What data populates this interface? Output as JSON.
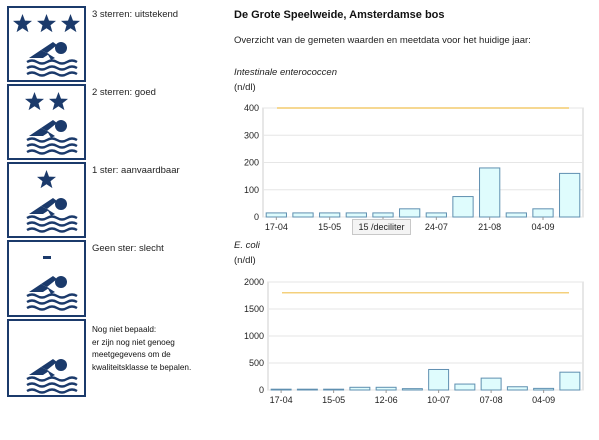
{
  "legend": {
    "items": [
      {
        "label": "3 sterren: uitstekend",
        "stars": 3
      },
      {
        "label": "2 sterren: goed",
        "stars": 2
      },
      {
        "label": "1 ster: aanvaardbaar",
        "stars": 1
      },
      {
        "label": "Geen ster: slecht",
        "stars": 0
      },
      {
        "label": "",
        "stars": -1
      }
    ],
    "unknown_lines": [
      "Nog niet bepaald:",
      "er zijn nog niet genoeg",
      "meetgegevens om de",
      "kwaliteitsklasse te bepalen."
    ]
  },
  "colors": {
    "badge_blue": "#1b3a6b",
    "bar_fill": "#dffcfd",
    "bar_stroke": "#5f8fb0",
    "threshold_line": "#f0c050",
    "grid": "#e6e6e6"
  },
  "location": {
    "title": "De Grote Speelweide, Amsterdamse bos"
  },
  "subtitle": "Overzicht van de gemeten waarden en meetdata voor het huidige jaar:",
  "tooltip": {
    "text": "15 /deciliter"
  },
  "chart_data": [
    {
      "type": "bar",
      "title": "Intestinale enterococcen",
      "unit": "(n/dl)",
      "ylim": [
        0,
        400
      ],
      "yticks": [
        0,
        100,
        200,
        300,
        400
      ],
      "xticklabels": [
        "17-04",
        "15-05",
        "06",
        "24-07",
        "21-08",
        "04-09"
      ],
      "values": [
        15,
        15,
        15,
        15,
        15,
        30,
        15,
        75,
        180,
        15,
        30,
        160
      ],
      "threshold": 400,
      "grid": true
    },
    {
      "type": "bar",
      "title": "E. coli",
      "unit": "(n/dl)",
      "ylim": [
        0,
        2000
      ],
      "yticks": [
        0,
        500,
        1000,
        1500,
        2000
      ],
      "xticklabels": [
        "17-04",
        "15-05",
        "12-06",
        "10-07",
        "07-08",
        "04-09"
      ],
      "values": [
        15,
        15,
        15,
        50,
        50,
        25,
        380,
        110,
        220,
        60,
        30,
        330
      ],
      "threshold": 1800,
      "grid": true
    }
  ]
}
